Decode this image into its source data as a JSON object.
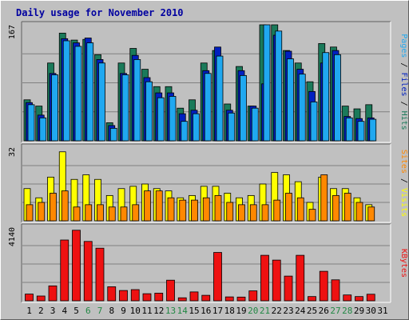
{
  "chart_data": {
    "title": "Daily usage for November 2010",
    "colors": {
      "hits": "#1a7a5a",
      "files": "#0020c0",
      "pages": "#20a8f0",
      "visits": "#ffff00",
      "sites": "#ff8800",
      "kbytes": "#ee1111",
      "weekend_label": "#228844",
      "weekday_label": "#000000",
      "title": "#0000a0"
    },
    "days": [
      "1",
      "2",
      "3",
      "4",
      "5",
      "6",
      "7",
      "8",
      "9",
      "10",
      "11",
      "12",
      "13",
      "14",
      "15",
      "16",
      "17",
      "18",
      "19",
      "20",
      "21",
      "22",
      "23",
      "24",
      "25",
      "26",
      "27",
      "28",
      "29",
      "30",
      "31"
    ],
    "weekend_days": [
      "6",
      "7",
      "13",
      "14",
      "20",
      "21",
      "27",
      "28"
    ],
    "panels": [
      {
        "id": "hits-files-pages",
        "type": "bar",
        "ymax_label": "167",
        "ylim": [
          0,
          167
        ],
        "legend": [
          "Pages",
          "Files",
          "Hits"
        ],
        "series": [
          {
            "name": "Hits",
            "values": [
              59,
              50,
              112,
              155,
              145,
              146,
              124,
              26,
              112,
              133,
              103,
              78,
              78,
              47,
              59,
              112,
              130,
              53,
              107,
              50,
              167,
              167,
              130,
              112,
              85,
              140,
              135,
              50,
              46,
              52,
              0
            ]
          },
          {
            "name": "Files",
            "values": [
              55,
              37,
              97,
              147,
              141,
              148,
              117,
              22,
              97,
              123,
              91,
              69,
              69,
              39,
              44,
              101,
              135,
              44,
              101,
              50,
              82,
              152,
              129,
              103,
              71,
              112,
              130,
              35,
              32,
              33,
              0
            ]
          },
          {
            "name": "Pages",
            "values": [
              52,
              33,
              95,
              144,
              136,
              141,
              112,
              18,
              95,
              117,
              85,
              62,
              64,
              28,
              39,
              97,
              122,
              40,
              94,
              47,
              167,
              158,
              118,
              96,
              56,
              127,
              124,
              33,
              28,
              31,
              0
            ]
          }
        ]
      },
      {
        "id": "visits-sites",
        "type": "bar",
        "ymax_label": "32",
        "ylim": [
          0,
          32
        ],
        "legend": [
          "Sites",
          "Visits"
        ],
        "series": [
          {
            "name": "Visits",
            "values": [
              14,
              10,
              19,
              30,
              18,
              20,
              18,
              11,
              14,
              15,
              16,
              14,
              13,
              10,
              11,
              15,
              15,
              12,
              10,
              11,
              16,
              21,
              20,
              17,
              8,
              19,
              14,
              14,
              10,
              7,
              0
            ]
          },
          {
            "name": "Sites",
            "values": [
              7,
              8,
              12,
              13,
              6,
              7,
              7,
              6,
              6,
              7,
              13,
              13,
              10,
              9,
              9,
              10,
              11,
              8,
              7,
              7,
              7,
              9,
              12,
              10,
              5,
              20,
              11,
              12,
              8,
              6,
              0
            ]
          }
        ]
      },
      {
        "id": "kbytes",
        "type": "bar",
        "ymax_label": "4140",
        "ylim": [
          0,
          4140
        ],
        "legend": [
          "KBytes"
        ],
        "series": [
          {
            "name": "KBytes",
            "values": [
              380,
              270,
              840,
              3420,
              3970,
              3340,
              2960,
              790,
              580,
              630,
              400,
              430,
              1160,
              170,
              500,
              310,
              2720,
              220,
              210,
              560,
              2560,
              2290,
              1390,
              2560,
              240,
              1660,
              1180,
              330,
              240,
              370,
              0
            ]
          }
        ]
      }
    ]
  }
}
